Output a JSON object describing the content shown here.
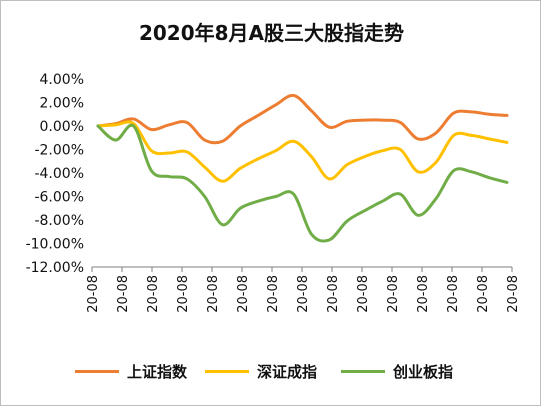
{
  "chart_data": {
    "type": "line",
    "title": "2020年8月A股三大股指走势",
    "xlabel": "",
    "ylabel": "",
    "x_tick_label": "20-08",
    "x_tick_count": 15,
    "yticks": [
      "4.00%",
      "2.00%",
      "0.00%",
      "-2.00%",
      "-4.00%",
      "-6.00%",
      "-8.00%",
      "-10.00%",
      "-12.00%"
    ],
    "ylim": [
      -12,
      4
    ],
    "grid": false,
    "legend_position": "bottom",
    "series": [
      {
        "name": "上证指数",
        "color": "#ED7D31",
        "values": [
          0.0,
          0.2,
          0.6,
          -0.3,
          0.1,
          0.3,
          -1.2,
          -1.3,
          0.0,
          0.9,
          1.8,
          2.6,
          1.3,
          -0.1,
          0.4,
          0.5,
          0.5,
          0.3,
          -1.1,
          -0.6,
          1.1,
          1.2,
          1.0,
          0.9
        ]
      },
      {
        "name": "深证成指",
        "color": "#FFC000",
        "values": [
          0.0,
          0.1,
          0.2,
          -2.1,
          -2.3,
          -2.2,
          -3.5,
          -4.7,
          -3.6,
          -2.8,
          -2.1,
          -1.3,
          -2.6,
          -4.5,
          -3.3,
          -2.6,
          -2.1,
          -2.0,
          -3.9,
          -3.1,
          -0.8,
          -0.8,
          -1.1,
          -1.4
        ]
      },
      {
        "name": "创业板指",
        "color": "#70AD47",
        "values": [
          0.0,
          -1.2,
          0.0,
          -3.8,
          -4.3,
          -4.5,
          -6.0,
          -8.4,
          -7.0,
          -6.4,
          -6.0,
          -5.8,
          -9.2,
          -9.7,
          -8.1,
          -7.2,
          -6.4,
          -5.8,
          -7.6,
          -6.2,
          -3.8,
          -3.9,
          -4.4,
          -4.8
        ]
      }
    ]
  }
}
